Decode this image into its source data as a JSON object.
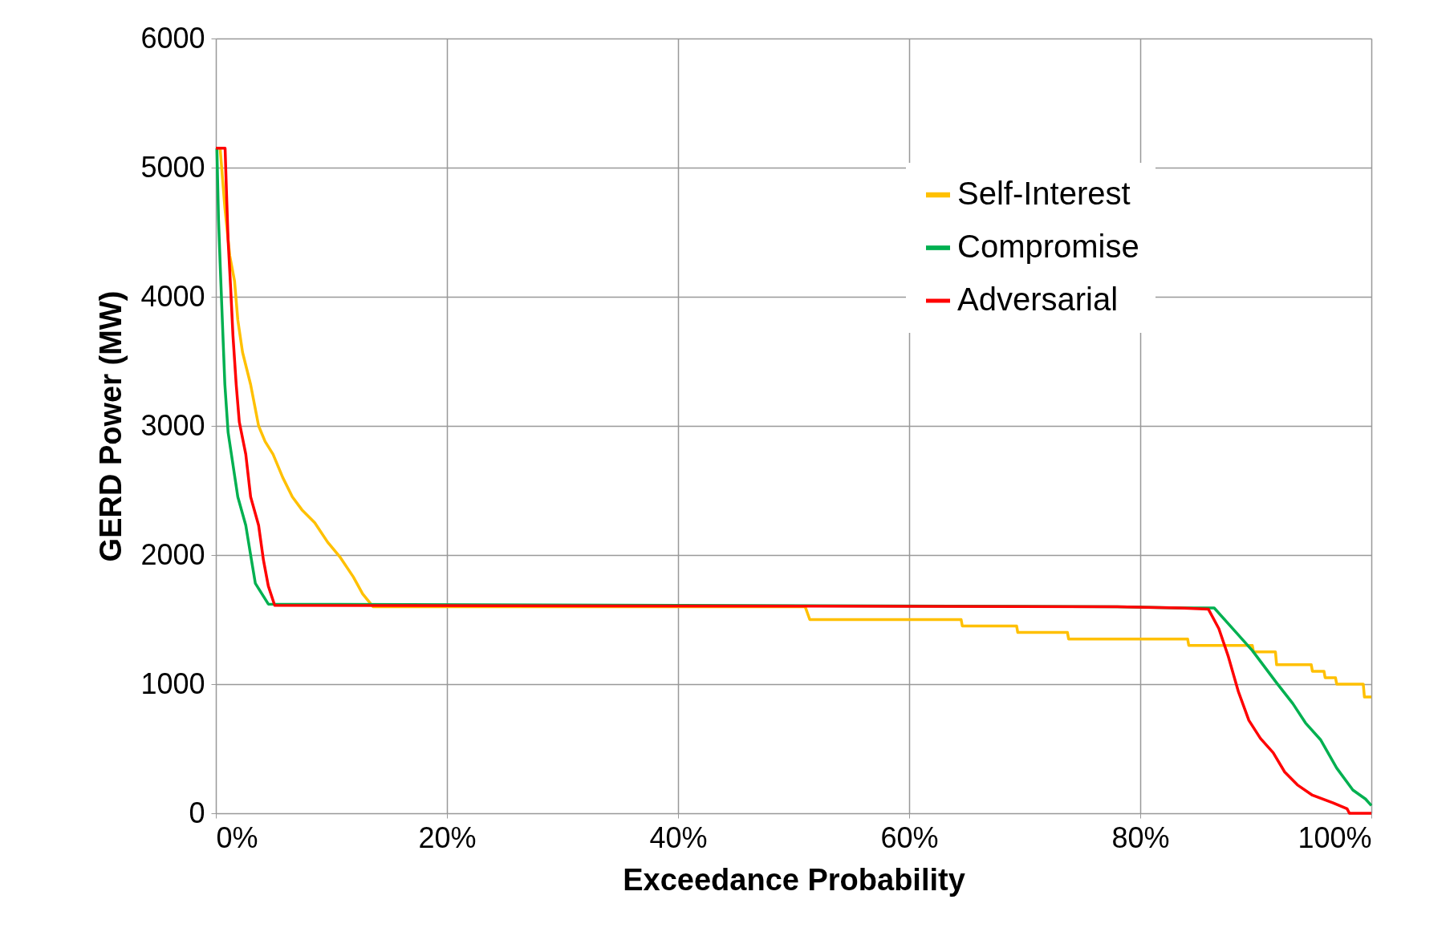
{
  "chart_data": {
    "type": "line",
    "xlabel": "Exceedance Probability",
    "ylabel": "GERD Power (MW)",
    "xlim": [
      0,
      100
    ],
    "ylim": [
      0,
      6000
    ],
    "xticks": [
      {
        "value": 0,
        "label": "0%"
      },
      {
        "value": 20,
        "label": "20%"
      },
      {
        "value": 40,
        "label": "40%"
      },
      {
        "value": 60,
        "label": "60%"
      },
      {
        "value": 80,
        "label": "80%"
      },
      {
        "value": 100,
        "label": "100%"
      }
    ],
    "yticks": [
      0,
      1000,
      2000,
      3000,
      4000,
      5000,
      6000
    ],
    "grid": true,
    "legend": "top right",
    "marker": "none",
    "line_style": "solid",
    "series": [
      {
        "name": "Self-Interest",
        "color": "#ffc000",
        "x": [
          0.37,
          0.78,
          1.2,
          1.62,
          1.9,
          2.31,
          3.01,
          3.7,
          4.26,
          4.95,
          5.79,
          6.62,
          7.45,
          8.56,
          9.67,
          10.78,
          11.9,
          12.7,
          13.6,
          51.0,
          51.4,
          64.5,
          64.6,
          69.3,
          69.4,
          73.7,
          73.8,
          84.1,
          84.2,
          89.7,
          89.8,
          91.7,
          91.8,
          94.8,
          94.9,
          95.9,
          96.0,
          96.9,
          97.0,
          99.3,
          99.4,
          100
        ],
        "values": [
          5150,
          4690,
          4320,
          4120,
          3820,
          3570,
          3320,
          3000,
          2880,
          2780,
          2600,
          2450,
          2350,
          2250,
          2100,
          1980,
          1830,
          1700,
          1600,
          1600,
          1500,
          1500,
          1450,
          1450,
          1400,
          1400,
          1350,
          1350,
          1300,
          1300,
          1250,
          1250,
          1150,
          1150,
          1100,
          1100,
          1050,
          1050,
          1000,
          1000,
          900,
          900
        ]
      },
      {
        "name": "Compromise",
        "color": "#00b050",
        "x": [
          0.09,
          0.23,
          0.37,
          0.56,
          0.78,
          1.06,
          1.48,
          1.9,
          2.59,
          3.01,
          3.42,
          4.54,
          78.0,
          83.4,
          86.4,
          87.9,
          89.7,
          91.8,
          93.2,
          94.3,
          95.6,
          97.0,
          98.4,
          99.5,
          100
        ],
        "values": [
          5150,
          4600,
          4260,
          3820,
          3320,
          2950,
          2700,
          2450,
          2230,
          2000,
          1780,
          1620,
          1600,
          1590,
          1590,
          1440,
          1260,
          1010,
          850,
          700,
          570,
          350,
          180,
          110,
          60
        ]
      },
      {
        "name": "Adversarial",
        "color": "#ff0000",
        "x": [
          0,
          0.8,
          0.92,
          1.06,
          1.28,
          1.48,
          1.76,
          2.03,
          2.59,
          3.01,
          3.7,
          4.12,
          4.54,
          5.09,
          78.0,
          83.4,
          85.9,
          86.8,
          87.6,
          88.5,
          89.4,
          90.4,
          91.5,
          92.5,
          93.6,
          94.9,
          96.7,
          97.9,
          98.1,
          100
        ],
        "values": [
          5150,
          5150,
          4810,
          4440,
          4070,
          3700,
          3320,
          3030,
          2780,
          2450,
          2230,
          1960,
          1760,
          1610,
          1600,
          1590,
          1580,
          1430,
          1220,
          940,
          720,
          580,
          470,
          320,
          220,
          140,
          80,
          35,
          0,
          0
        ]
      }
    ]
  }
}
